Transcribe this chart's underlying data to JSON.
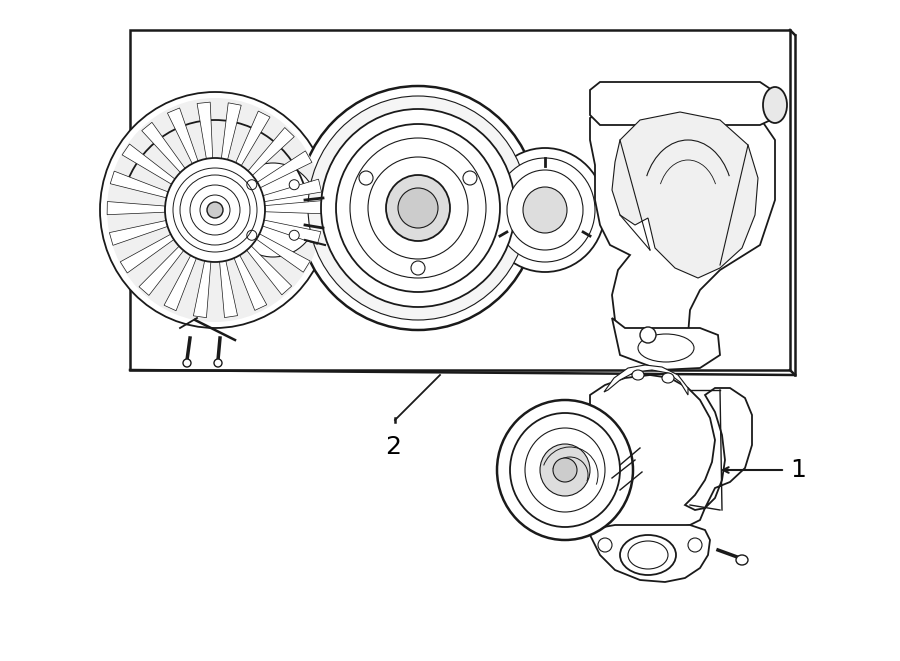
{
  "bg_color": "#ffffff",
  "line_color": "#1a1a1a",
  "label_color": "#000000",
  "fig_width": 9.0,
  "fig_height": 6.61,
  "dpi": 100,
  "xlim": [
    0,
    900
  ],
  "ylim": [
    0,
    661
  ]
}
